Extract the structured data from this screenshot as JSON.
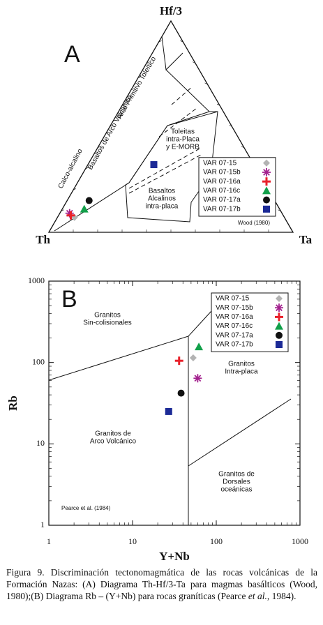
{
  "chart_data": [
    {
      "type": "ternary",
      "panel": "A",
      "corners": {
        "top": "Hf/3",
        "left": "Th",
        "right": "Ta"
      },
      "annotations": [
        [
          "Arco Primitivo Toleítico"
        ],
        [
          "Basaltos de Arco Volcánico"
        ],
        [
          "Calco-alcalino"
        ],
        [
          "Toleitas",
          "intra-Placa",
          "y E-MORB"
        ],
        [
          "Basaltos",
          "Alcalinos",
          "intra-placa"
        ]
      ],
      "credit": "Wood (1980)",
      "legend": "lower right",
      "series": [
        {
          "name": "VAR 07-15",
          "color": "#b3b3b3",
          "marker": "diamond",
          "values": [
            7,
            86,
            7
          ]
        },
        {
          "name": "VAR 07-15b",
          "color": "#a3218e",
          "marker": "asterisk",
          "values": [
            9,
            87,
            4
          ]
        },
        {
          "name": "VAR 07-16a",
          "color": "#e8202a",
          "marker": "plus",
          "values": [
            8,
            87,
            5
          ]
        },
        {
          "name": "VAR 07-16c",
          "color": "#12a04a",
          "marker": "triangle",
          "values": [
            11,
            80,
            9
          ]
        },
        {
          "name": "VAR 07-17a",
          "color": "#111111",
          "marker": "circle",
          "values": [
            15,
            76,
            9
          ]
        },
        {
          "name": "VAR 07-17b",
          "color": "#1c2a96",
          "marker": "square",
          "values": [
            32,
            41,
            27
          ]
        }
      ]
    },
    {
      "type": "scatter",
      "panel": "B",
      "xlabel": "Y+Nb",
      "ylabel": "Rb",
      "xlog": true,
      "ylog": true,
      "xlim": [
        1,
        1000
      ],
      "ylim": [
        1,
        1000
      ],
      "xticks": [
        1,
        10,
        100,
        1000
      ],
      "yticks": [
        1,
        10,
        100,
        1000
      ],
      "annotations": [
        [
          "Granitos",
          "Sin-colisionales"
        ],
        [
          "Granitos",
          "Intra-placa"
        ],
        [
          "Granitos de",
          "Arco Volcánico"
        ],
        [
          "Granitos de",
          "Dorsales",
          "oceánicas"
        ]
      ],
      "credit": "Pearce et al. (1984)",
      "legend": "upper right",
      "series": [
        {
          "name": "VAR 07-15",
          "color": "#b3b3b3",
          "marker": "diamond",
          "x": [
            53
          ],
          "y": [
            114
          ]
        },
        {
          "name": "VAR 07-15b",
          "color": "#a3218e",
          "marker": "asterisk",
          "x": [
            60
          ],
          "y": [
            64
          ]
        },
        {
          "name": "VAR 07-16a",
          "color": "#e8202a",
          "marker": "plus",
          "x": [
            36
          ],
          "y": [
            105
          ]
        },
        {
          "name": "VAR 07-16c",
          "color": "#12a04a",
          "marker": "triangle",
          "x": [
            62
          ],
          "y": [
            156
          ]
        },
        {
          "name": "VAR 07-17a",
          "color": "#111111",
          "marker": "circle",
          "x": [
            38
          ],
          "y": [
            42
          ]
        },
        {
          "name": "VAR 07-17b",
          "color": "#1c2a96",
          "marker": "square",
          "x": [
            27
          ],
          "y": [
            25
          ]
        }
      ]
    }
  ],
  "caption": [
    "Figura 9. Discriminación tectonomagmática de las rocas volcánicas de la Formación Nazas: (A) Diagrama Th-Hf/3-Ta para magmas basálticos (Wood, 1980);(B) Diagrama Rb – (Y+Nb) para rocas graníticas (Pearce ",
    "et al.",
    ", 1984)."
  ]
}
